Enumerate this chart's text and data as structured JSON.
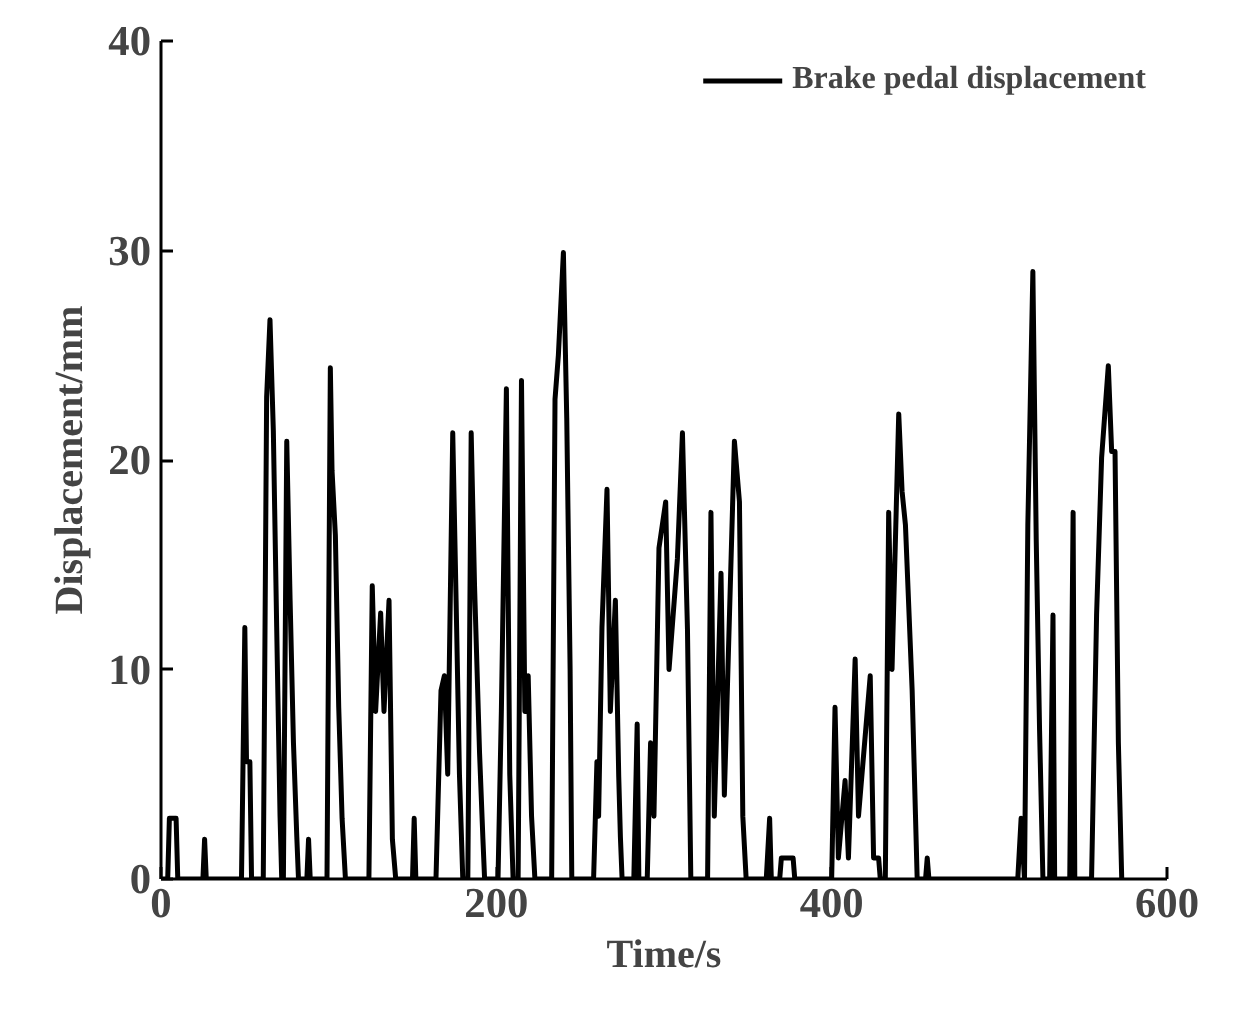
{
  "chart_data": {
    "type": "line",
    "xlabel": "Time/s",
    "ylabel": "Displacement/mm",
    "xlim": [
      0,
      600
    ],
    "ylim": [
      0,
      40
    ],
    "xticks": [
      0,
      200,
      400,
      600
    ],
    "yticks": [
      0,
      10,
      20,
      30,
      40
    ],
    "grid": false,
    "legend": "top right",
    "marker": "none",
    "line_style": "solid",
    "series": [
      {
        "name": "Brake pedal displacement",
        "color": "#000000",
        "x": [
          0,
          4,
          5,
          9,
          10,
          25,
          26,
          27,
          48,
          50,
          51,
          53,
          54,
          61,
          63,
          65,
          67,
          69,
          71,
          72,
          73,
          75,
          77,
          79,
          81,
          82,
          87,
          88,
          89,
          99,
          101,
          102,
          104,
          106,
          108,
          110,
          124,
          126,
          128,
          131,
          133,
          136,
          138,
          140,
          150,
          151,
          152,
          164,
          167,
          169,
          171,
          174,
          176,
          178,
          180,
          183,
          185,
          187,
          190,
          192,
          193,
          201,
          203,
          206,
          208,
          210,
          213,
          215,
          217,
          219,
          221,
          223,
          233,
          235,
          237,
          240,
          242,
          244,
          245,
          258,
          260,
          261,
          263,
          266,
          268,
          271,
          273,
          274,
          275,
          282,
          284,
          285,
          290,
          292,
          294,
          297,
          301,
          303,
          308,
          311,
          314,
          316,
          326,
          328,
          330,
          334,
          336,
          342,
          345,
          347,
          349,
          361,
          363,
          364,
          369,
          370,
          377,
          378,
          400,
          402,
          404,
          408,
          410,
          414,
          416,
          423,
          425,
          428,
          429,
          432,
          434,
          436,
          440,
          442,
          444,
          448,
          450,
          451,
          456,
          457,
          458,
          511,
          513,
          515,
          517,
          520,
          522,
          524,
          526,
          530,
          532,
          533,
          542,
          544,
          545,
          555,
          558,
          561,
          565,
          567,
          569,
          571,
          573
        ],
        "values": [
          0,
          0,
          2.9,
          2.9,
          0,
          0,
          1.9,
          0,
          0,
          12,
          5.6,
          5.6,
          0,
          0,
          23,
          26.7,
          21.4,
          12,
          3,
          0,
          0,
          20.9,
          13.3,
          6.5,
          2,
          0,
          0,
          1.9,
          0,
          0,
          24.4,
          19.5,
          16.4,
          8.2,
          2.9,
          0,
          0,
          14,
          8,
          12.7,
          8,
          13.3,
          1.9,
          0,
          0,
          2.9,
          0,
          0,
          9,
          9.7,
          5,
          21.3,
          13.3,
          5,
          0,
          0,
          21.3,
          14,
          6,
          1.9,
          0,
          0,
          8,
          23.4,
          5,
          0,
          0,
          23.8,
          8,
          9.7,
          3,
          0,
          0,
          22.9,
          25,
          29.9,
          22,
          10,
          0,
          0,
          5.6,
          3,
          12,
          18.6,
          8,
          13.3,
          4.9,
          2,
          0,
          0,
          7.4,
          0,
          0,
          6.5,
          3,
          15.8,
          18,
          10,
          15.3,
          21.3,
          11.9,
          0,
          0,
          17.5,
          3,
          14.6,
          4,
          20.9,
          18,
          3,
          0,
          0,
          2.9,
          0,
          0,
          1,
          1,
          0,
          0,
          8.2,
          1,
          4.7,
          1,
          10.5,
          3,
          9.7,
          1,
          1,
          0,
          0,
          17.5,
          10,
          22.2,
          18.5,
          16.9,
          9,
          3,
          0,
          0,
          1,
          0,
          0,
          2.9,
          0,
          16.9,
          29,
          16.2,
          7.1,
          0,
          0,
          12.6,
          0,
          0,
          17.5,
          0,
          0,
          12.6,
          20.1,
          24.5,
          20.4,
          20.4,
          6.5,
          0
        ]
      }
    ]
  }
}
